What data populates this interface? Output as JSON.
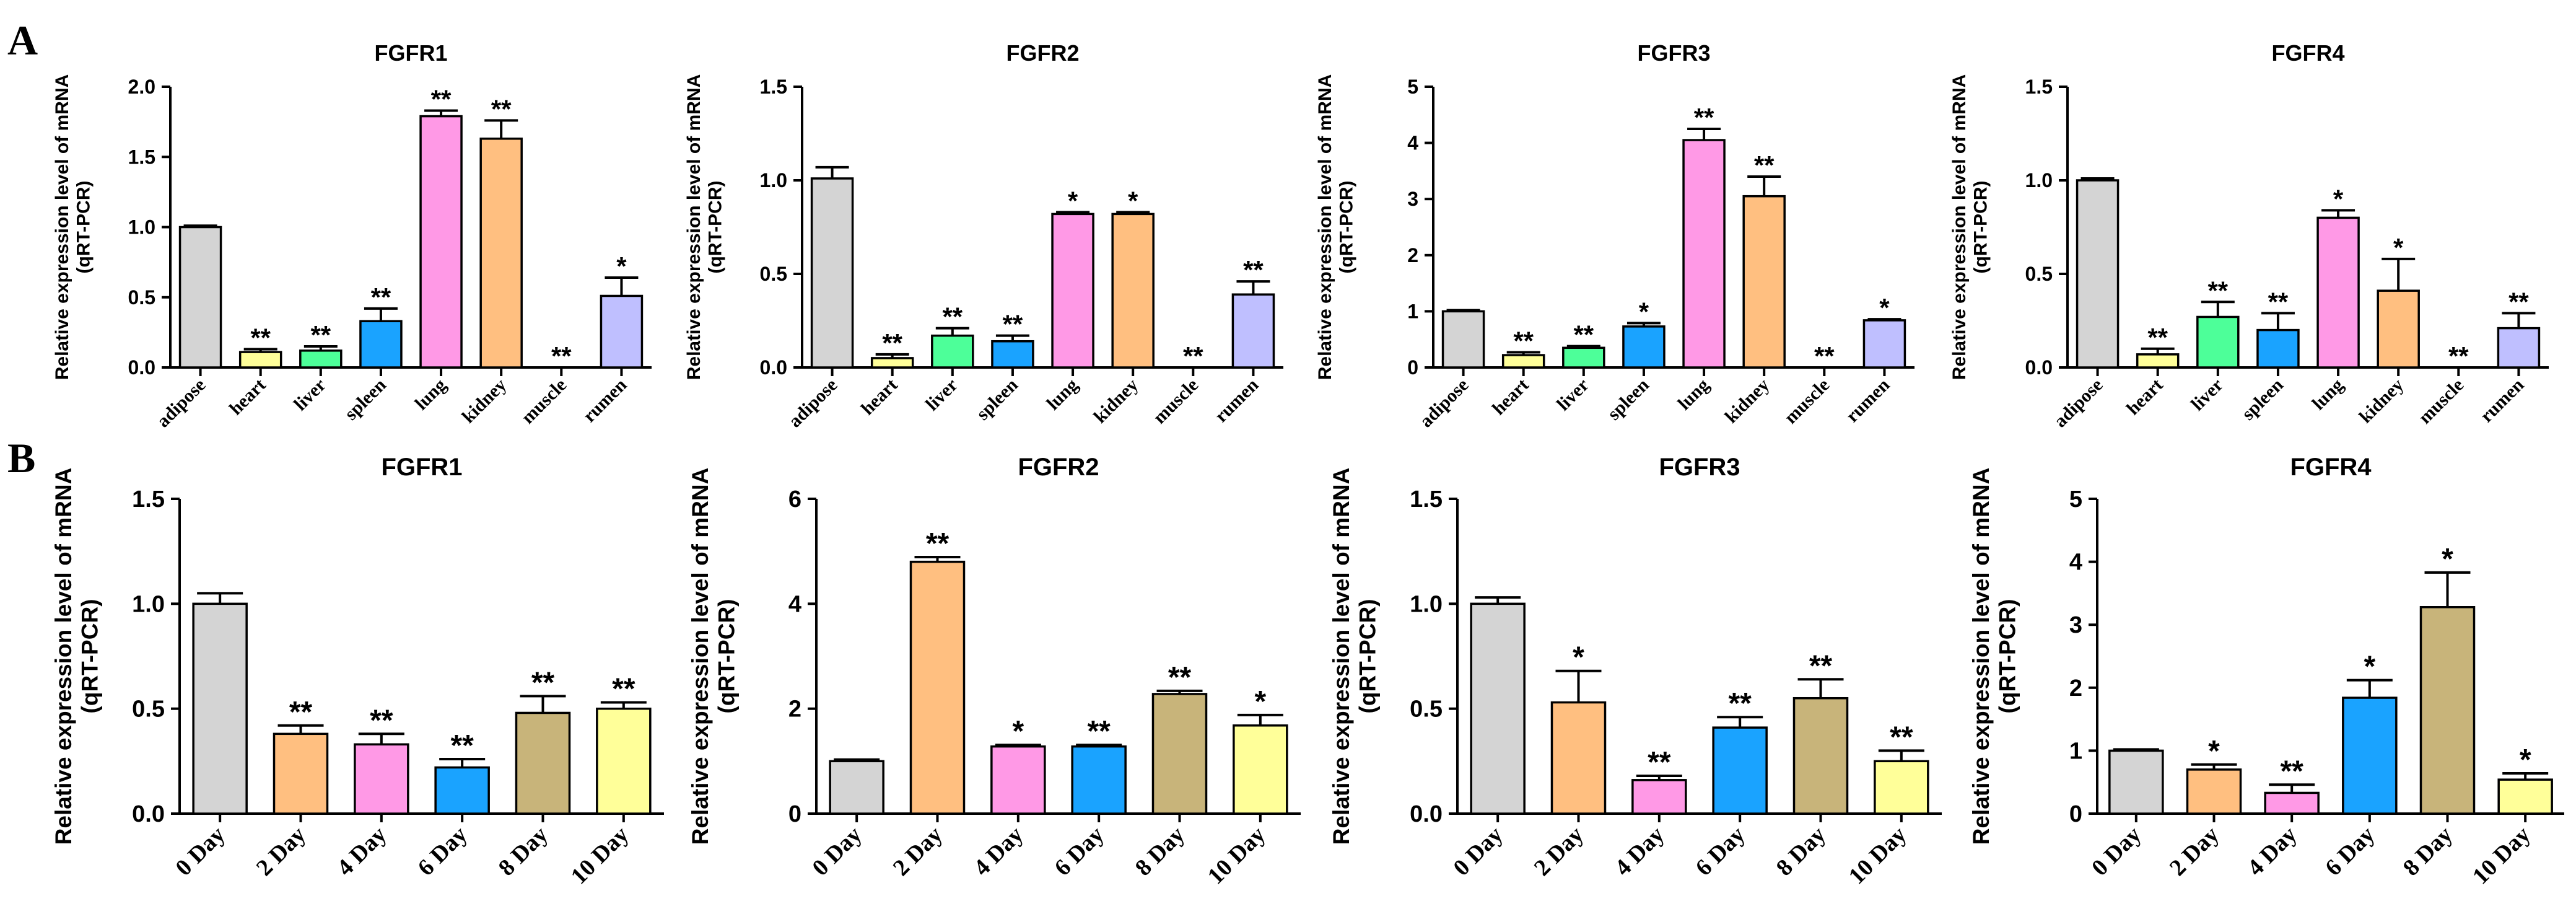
{
  "panel_labels": [
    "A",
    "B"
  ],
  "ylabel_line1": "Relative expression level of mRNA",
  "ylabel_line2": "(qRT-PCR)",
  "colors": {
    "adipose": "#d4d4d4",
    "heart": "#ffff99",
    "liver": "#4dff99",
    "spleen": "#1aa3ff",
    "lung": "#ff99e6",
    "kidney": "#ffbf80",
    "muscle": "#d4d4d4",
    "rumen": "#bfbfff",
    "day0": "#d4d4d4",
    "day2": "#ffbf80",
    "day4": "#ff99e6",
    "day6": "#1aa3ff",
    "day8": "#c8b47a",
    "day10": "#ffff99"
  },
  "chart_data": [
    {
      "panel": "A",
      "type": "bar",
      "title": "FGFR1",
      "categories": [
        "adipose",
        "heart",
        "liver",
        "spleen",
        "lung",
        "kidney",
        "muscle",
        "rumen"
      ],
      "values": [
        1.0,
        0.11,
        0.12,
        0.33,
        1.79,
        1.63,
        0.0,
        0.51
      ],
      "errors": [
        0.01,
        0.02,
        0.03,
        0.09,
        0.04,
        0.13,
        0.0,
        0.13
      ],
      "significance": [
        "",
        "**",
        "**",
        "**",
        "**",
        "**",
        "**",
        "*"
      ],
      "ylim": [
        0,
        2.0
      ],
      "yticks": [
        "0.0",
        "0.5",
        "1.0",
        "1.5",
        "2.0"
      ],
      "bar_colors": [
        "adipose",
        "heart",
        "liver",
        "spleen",
        "lung",
        "kidney",
        "muscle",
        "rumen"
      ]
    },
    {
      "panel": "A",
      "type": "bar",
      "title": "FGFR2",
      "categories": [
        "adipose",
        "heart",
        "liver",
        "spleen",
        "lung",
        "kidney",
        "muscle",
        "rumen"
      ],
      "values": [
        1.01,
        0.05,
        0.17,
        0.14,
        0.82,
        0.82,
        0.0,
        0.39
      ],
      "errors": [
        0.06,
        0.02,
        0.04,
        0.03,
        0.01,
        0.01,
        0.0,
        0.07
      ],
      "significance": [
        "",
        "**",
        "**",
        "**",
        "*",
        "*",
        "**",
        "**"
      ],
      "ylim": [
        0,
        1.5
      ],
      "yticks": [
        "0.0",
        "0.5",
        "1.0",
        "1.5"
      ],
      "bar_colors": [
        "adipose",
        "heart",
        "liver",
        "spleen",
        "lung",
        "kidney",
        "muscle",
        "rumen"
      ]
    },
    {
      "panel": "A",
      "type": "bar",
      "title": "FGFR3",
      "categories": [
        "adipose",
        "heart",
        "liver",
        "spleen",
        "lung",
        "kidney",
        "muscle",
        "rumen"
      ],
      "values": [
        1.0,
        0.22,
        0.35,
        0.73,
        4.05,
        3.05,
        0.0,
        0.84
      ],
      "errors": [
        0.02,
        0.05,
        0.03,
        0.06,
        0.2,
        0.35,
        0.0,
        0.02
      ],
      "significance": [
        "",
        "**",
        "**",
        "*",
        "**",
        "**",
        "**",
        "*"
      ],
      "ylim": [
        0,
        5
      ],
      "yticks": [
        "0",
        "1",
        "2",
        "3",
        "4",
        "5"
      ],
      "bar_colors": [
        "adipose",
        "heart",
        "liver",
        "spleen",
        "lung",
        "kidney",
        "muscle",
        "rumen"
      ]
    },
    {
      "panel": "A",
      "type": "bar",
      "title": "FGFR4",
      "categories": [
        "adipose",
        "heart",
        "liver",
        "spleen",
        "lung",
        "kidney",
        "muscle",
        "rumen"
      ],
      "values": [
        1.0,
        0.07,
        0.27,
        0.2,
        0.8,
        0.41,
        0.0,
        0.21
      ],
      "errors": [
        0.01,
        0.03,
        0.08,
        0.09,
        0.04,
        0.17,
        0.0,
        0.08
      ],
      "significance": [
        "",
        "**",
        "**",
        "**",
        "*",
        "*",
        "**",
        "**"
      ],
      "ylim": [
        0,
        1.5
      ],
      "yticks": [
        "0.0",
        "0.5",
        "1.0",
        "1.5"
      ],
      "bar_colors": [
        "adipose",
        "heart",
        "liver",
        "spleen",
        "lung",
        "kidney",
        "muscle",
        "rumen"
      ]
    },
    {
      "panel": "B",
      "type": "bar",
      "title": "FGFR1",
      "categories": [
        "0 Day",
        "2 Day",
        "4 Day",
        "6 Day",
        "8 Day",
        "10 Day"
      ],
      "values": [
        1.0,
        0.38,
        0.33,
        0.22,
        0.48,
        0.5
      ],
      "errors": [
        0.05,
        0.04,
        0.05,
        0.04,
        0.08,
        0.03
      ],
      "significance": [
        "",
        "**",
        "**",
        "**",
        "**",
        "**"
      ],
      "ylim": [
        0,
        1.5
      ],
      "yticks": [
        "0.0",
        "0.5",
        "1.0",
        "1.5"
      ],
      "bar_colors": [
        "day0",
        "day2",
        "day4",
        "day6",
        "day8",
        "day10"
      ]
    },
    {
      "panel": "B",
      "type": "bar",
      "title": "FGFR2",
      "categories": [
        "0 Day",
        "2 Day",
        "4 Day",
        "6 Day",
        "8 Day",
        "10 Day"
      ],
      "values": [
        1.0,
        4.8,
        1.28,
        1.28,
        2.28,
        1.68
      ],
      "errors": [
        0.03,
        0.09,
        0.03,
        0.03,
        0.06,
        0.2
      ],
      "significance": [
        "",
        "**",
        "*",
        "**",
        "**",
        "*"
      ],
      "ylim": [
        0,
        6
      ],
      "yticks": [
        "0",
        "2",
        "4",
        "6"
      ],
      "bar_colors": [
        "day0",
        "day2",
        "day4",
        "day6",
        "day8",
        "day10"
      ]
    },
    {
      "panel": "B",
      "type": "bar",
      "title": "FGFR3",
      "categories": [
        "0 Day",
        "2 Day",
        "4 Day",
        "6 Day",
        "8 Day",
        "10 Day"
      ],
      "values": [
        1.0,
        0.53,
        0.16,
        0.41,
        0.55,
        0.25
      ],
      "errors": [
        0.03,
        0.15,
        0.02,
        0.05,
        0.09,
        0.05
      ],
      "significance": [
        "",
        "*",
        "**",
        "**",
        "**",
        "**"
      ],
      "ylim": [
        0,
        1.5
      ],
      "yticks": [
        "0.0",
        "0.5",
        "1.0",
        "1.5"
      ],
      "bar_colors": [
        "day0",
        "day2",
        "day4",
        "day6",
        "day8",
        "day10"
      ]
    },
    {
      "panel": "B",
      "type": "bar",
      "title": "FGFR4",
      "categories": [
        "0 Day",
        "2 Day",
        "4 Day",
        "6 Day",
        "8 Day",
        "10 Day"
      ],
      "values": [
        1.0,
        0.7,
        0.33,
        1.84,
        3.28,
        0.54
      ],
      "errors": [
        0.02,
        0.08,
        0.13,
        0.28,
        0.55,
        0.1
      ],
      "significance": [
        "",
        "*",
        "**",
        "*",
        "*",
        "*"
      ],
      "ylim": [
        0,
        5
      ],
      "yticks": [
        "0",
        "1",
        "2",
        "3",
        "4",
        "5"
      ],
      "bar_colors": [
        "day0",
        "day2",
        "day4",
        "day6",
        "day8",
        "day10"
      ]
    }
  ]
}
